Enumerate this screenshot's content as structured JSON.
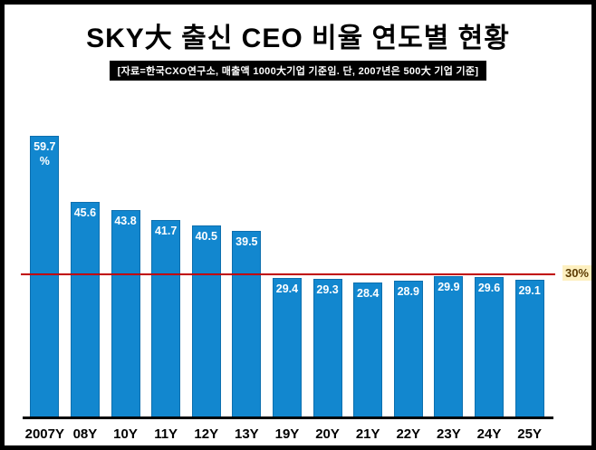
{
  "header": {
    "title": "SKY大 출신 CEO 비율 연도별 현황",
    "subtitle": "[자료=한국CXO연구소, 매출액 1000大기업  기준임. 단, 2007년은 500大 기업 기준]"
  },
  "chart_data": {
    "type": "bar",
    "title": "SKY大 출신 CEO 비율 연도별 현황",
    "categories": [
      "2007Y",
      "08Y",
      "10Y",
      "11Y",
      "12Y",
      "13Y",
      "19Y",
      "20Y",
      "21Y",
      "22Y",
      "23Y",
      "24Y",
      "25Y"
    ],
    "values": [
      59.7,
      45.6,
      43.8,
      41.7,
      40.5,
      39.5,
      29.4,
      29.3,
      28.4,
      28.9,
      29.9,
      29.6,
      29.1
    ],
    "bar_labels": [
      "59.7\n%",
      "45.6",
      "43.8",
      "41.7",
      "40.5",
      "39.5",
      "29.4",
      "29.3",
      "28.4",
      "28.9",
      "29.9",
      "29.6",
      "29.1"
    ],
    "xlabel": "",
    "ylabel": "",
    "ylim": [
      0,
      60
    ],
    "grid": false,
    "legend": false,
    "reference_line": {
      "value": 30,
      "label": "30%"
    }
  },
  "colors": {
    "bar": "#1287cf",
    "bar_border": "#0d6fae",
    "reference_line": "#c00000",
    "reference_label_text": "#5b3a00",
    "reference_label_bg": "#fdf0c0",
    "frame_border": "#000000",
    "subtitle_bg": "#000000",
    "subtitle_text": "#ffffff"
  }
}
